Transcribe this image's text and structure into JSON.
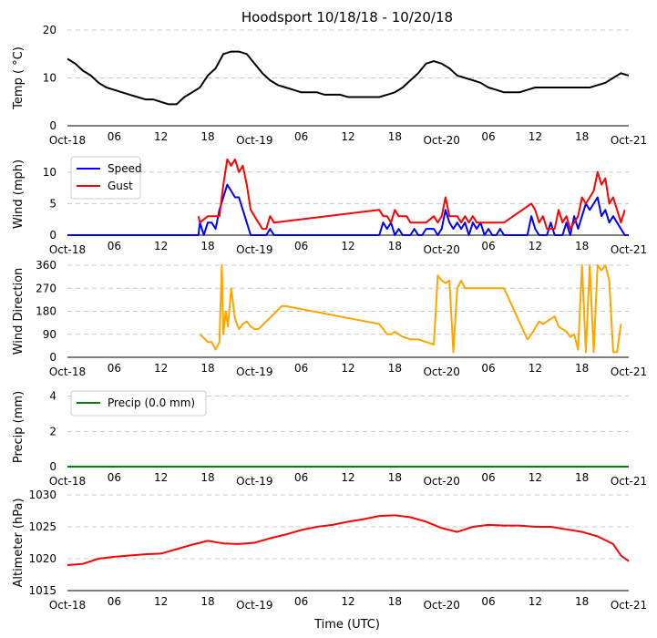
{
  "figure": {
    "title": "Hoodsport 10/18/18 - 10/20/18",
    "xlabel": "Time (UTC)",
    "x_range_hours": [
      0,
      72
    ],
    "x_ticks": [
      {
        "h": 0,
        "label": "Oct-18"
      },
      {
        "h": 6,
        "label": "06"
      },
      {
        "h": 12,
        "label": "12"
      },
      {
        "h": 18,
        "label": "18"
      },
      {
        "h": 24,
        "label": "Oct-19"
      },
      {
        "h": 30,
        "label": "06"
      },
      {
        "h": 36,
        "label": "12"
      },
      {
        "h": 42,
        "label": "18"
      },
      {
        "h": 48,
        "label": "Oct-20"
      },
      {
        "h": 54,
        "label": "06"
      },
      {
        "h": 60,
        "label": "12"
      },
      {
        "h": 66,
        "label": "18"
      },
      {
        "h": 72,
        "label": "Oct-21"
      }
    ]
  },
  "chart_data": [
    {
      "id": "temp",
      "type": "line",
      "ylabel": "Temp ( °C)",
      "ylim": [
        0,
        20
      ],
      "yticks": [
        0,
        10,
        20
      ],
      "series": [
        {
          "name": "Temp",
          "color": "#000000",
          "x": [
            0,
            1,
            2,
            3,
            4,
            5,
            6,
            7,
            8,
            9,
            10,
            11,
            12,
            13,
            14,
            15,
            16,
            17,
            18,
            19,
            20,
            21,
            22,
            23,
            24,
            25,
            26,
            27,
            28,
            29,
            30,
            31,
            32,
            33,
            34,
            35,
            36,
            37,
            38,
            39,
            40,
            41,
            42,
            43,
            44,
            45,
            46,
            47,
            48,
            49,
            50,
            51,
            52,
            53,
            54,
            55,
            56,
            57,
            58,
            59,
            60,
            61,
            62,
            63,
            64,
            65,
            66,
            67,
            68,
            69,
            70,
            71,
            72
          ],
          "y": [
            14,
            13,
            11.5,
            10.5,
            9,
            8,
            7.5,
            7,
            6.5,
            6,
            5.5,
            5.5,
            5,
            4.5,
            4.5,
            6,
            7,
            8,
            10.5,
            12,
            15,
            15.5,
            15.5,
            15,
            13,
            11,
            9.5,
            8.5,
            8,
            7.5,
            7,
            7,
            7,
            6.5,
            6.5,
            6.5,
            6,
            6,
            6,
            6,
            6,
            6.5,
            7,
            8,
            9.5,
            11,
            13,
            13.5,
            13,
            12,
            10.5,
            10,
            9.5,
            9,
            8,
            7.5,
            7,
            7,
            7,
            7.5,
            8,
            8,
            8,
            8,
            8,
            8,
            8,
            8,
            8.5,
            9,
            10,
            11,
            10.5
          ]
        }
      ]
    },
    {
      "id": "wind",
      "type": "line",
      "ylabel": "Wind (mph)",
      "ylim": [
        0,
        13
      ],
      "yticks": [
        0,
        5,
        10
      ],
      "legend": "top-left",
      "series": [
        {
          "name": "Speed",
          "color": "#0000ff",
          "x": [
            0,
            16.8,
            17,
            17.5,
            18,
            18.5,
            19,
            19.5,
            20,
            20.5,
            21,
            21.5,
            22,
            22.5,
            23,
            23.5,
            24,
            24.5,
            25,
            25.5,
            26,
            26.5,
            27,
            27.5,
            40,
            40.5,
            41,
            41.5,
            42,
            42.5,
            43,
            43.5,
            44,
            44.5,
            45,
            45.5,
            46,
            47,
            47.5,
            48,
            48.5,
            49,
            49.5,
            50,
            50.5,
            51,
            51.5,
            52,
            52.5,
            53,
            53.5,
            54,
            54.5,
            55,
            55.5,
            56,
            59,
            59.5,
            60,
            60.5,
            61,
            61.5,
            62,
            62.5,
            63,
            63.5,
            64,
            64.5,
            65,
            65.5,
            66,
            66.5,
            67,
            67.5,
            68,
            68.5,
            69,
            69.5,
            70,
            70.5,
            71,
            71.5,
            72
          ],
          "y": [
            0,
            0,
            2,
            0,
            2,
            2,
            1,
            4,
            6,
            8,
            7,
            6,
            6,
            4,
            2,
            0,
            0,
            0,
            0,
            0,
            1,
            0,
            0,
            0,
            0,
            2,
            1,
            2,
            0,
            1,
            0,
            0,
            0,
            1,
            0,
            0,
            1,
            1,
            0,
            1,
            4,
            2,
            1,
            2,
            1,
            2,
            0,
            2,
            1,
            2,
            0,
            1,
            0,
            0,
            1,
            0,
            0,
            3,
            1,
            0,
            0,
            0,
            2,
            0,
            0,
            0,
            2,
            0,
            3,
            1,
            3,
            5,
            4,
            5,
            6,
            3,
            4,
            2,
            3,
            2,
            1,
            0,
            0
          ]
        },
        {
          "name": "Gust",
          "color": "#ff0000",
          "x": [
            16.8,
            17,
            18,
            18.5,
            19,
            19.5,
            20,
            20.5,
            21,
            21.5,
            22,
            22.5,
            23,
            23.5,
            24,
            24.5,
            25,
            25.5,
            26,
            26.5,
            40,
            40.5,
            41,
            41.5,
            42,
            42.5,
            43,
            43.5,
            44,
            44.5,
            45,
            45.5,
            46,
            47,
            47.5,
            48,
            48.5,
            49,
            49.5,
            50,
            50.5,
            51,
            51.5,
            52,
            52.5,
            53,
            53.5,
            54,
            54.5,
            55,
            55.5,
            56,
            59.5,
            60,
            60.5,
            61,
            61.5,
            62,
            62.5,
            63,
            63.5,
            64,
            64.5,
            65,
            65.5,
            66,
            66.5,
            67,
            67.5,
            68,
            68.5,
            69,
            69.5,
            70,
            70.5,
            71,
            71.5
          ],
          "y": [
            3,
            2,
            3,
            3,
            3,
            3,
            8,
            12,
            11,
            12,
            10,
            11,
            8,
            4,
            3,
            2,
            1,
            1,
            3,
            2,
            4,
            3,
            3,
            2,
            4,
            3,
            3,
            3,
            2,
            2,
            2,
            2,
            2,
            3,
            2,
            3,
            6,
            3,
            3,
            3,
            2,
            3,
            2,
            3,
            2,
            2,
            2,
            2,
            2,
            2,
            2,
            2,
            5,
            4,
            2,
            3,
            1,
            1,
            1,
            4,
            2,
            3,
            1,
            2,
            3,
            6,
            5,
            6,
            7,
            10,
            8,
            9,
            5,
            6,
            4,
            2,
            4
          ]
        }
      ]
    },
    {
      "id": "direction",
      "type": "line",
      "ylabel": "Wind Direction",
      "ylim": [
        0,
        360
      ],
      "yticks": [
        0,
        90,
        180,
        270,
        360
      ],
      "series": [
        {
          "name": "Direction",
          "color": "#ffa500",
          "x": [
            17,
            18,
            18.5,
            19,
            19.5,
            19.8,
            20,
            20.3,
            20.6,
            21,
            21.5,
            22,
            22.5,
            23,
            23.5,
            24,
            24.5,
            27.5,
            28,
            40,
            40.5,
            41,
            41.5,
            42,
            42.5,
            43,
            44,
            45,
            46,
            47,
            47.5,
            48,
            48.5,
            49,
            49.5,
            50,
            50.5,
            51,
            51.5,
            52,
            52.5,
            53,
            53.5,
            54,
            54.5,
            55,
            55.5,
            56,
            59,
            59.5,
            60.5,
            61,
            62.5,
            63,
            64,
            64.5,
            65,
            65.5,
            66,
            66.5,
            67,
            67.5,
            68,
            68.5,
            69,
            69.5,
            70,
            70.5,
            71
          ],
          "y": [
            90,
            60,
            60,
            30,
            60,
            360,
            90,
            180,
            120,
            270,
            150,
            110,
            130,
            140,
            120,
            110,
            110,
            200,
            200,
            130,
            110,
            90,
            90,
            100,
            90,
            80,
            70,
            70,
            60,
            50,
            320,
            300,
            290,
            300,
            20,
            270,
            300,
            270,
            270,
            270,
            270,
            270,
            270,
            270,
            270,
            270,
            270,
            270,
            70,
            90,
            140,
            130,
            160,
            120,
            100,
            80,
            90,
            30,
            360,
            20,
            360,
            20,
            360,
            340,
            360,
            300,
            20,
            20,
            130
          ]
        }
      ]
    },
    {
      "id": "precip",
      "type": "line",
      "ylabel": "Precip (mm)",
      "ylim": [
        0,
        4.5
      ],
      "yticks": [
        0,
        2,
        4
      ],
      "legend": "top-left",
      "series": [
        {
          "name": "Precip (0.0 mm)",
          "color": "#008000",
          "x": [
            0,
            72
          ],
          "y": [
            0,
            0
          ]
        }
      ]
    },
    {
      "id": "altimeter",
      "type": "line",
      "ylabel": "Altimeter (hPa)",
      "ylim": [
        1015,
        1030
      ],
      "yticks": [
        1015,
        1020,
        1025,
        1030
      ],
      "series": [
        {
          "name": "Altimeter",
          "color": "#ff0000",
          "x": [
            0,
            2,
            4,
            6,
            8,
            10,
            12,
            14,
            16,
            18,
            20,
            22,
            24,
            26,
            28,
            30,
            32,
            34,
            36,
            38,
            40,
            42,
            44,
            46,
            48,
            50,
            52,
            54,
            56,
            58,
            60,
            62,
            64,
            66,
            68,
            70,
            71,
            72
          ],
          "y": [
            1019,
            1019.2,
            1020,
            1020.3,
            1020.5,
            1020.7,
            1020.8,
            1021.5,
            1022.2,
            1022.8,
            1022.4,
            1022.3,
            1022.5,
            1023.2,
            1023.8,
            1024.5,
            1025,
            1025.3,
            1025.8,
            1026.2,
            1026.7,
            1026.8,
            1026.5,
            1025.8,
            1024.8,
            1024.2,
            1025,
            1025.3,
            1025.2,
            1025.2,
            1025,
            1025,
            1024.6,
            1024.2,
            1023.5,
            1022.3,
            1020.5,
            1019.6
          ]
        }
      ]
    }
  ]
}
